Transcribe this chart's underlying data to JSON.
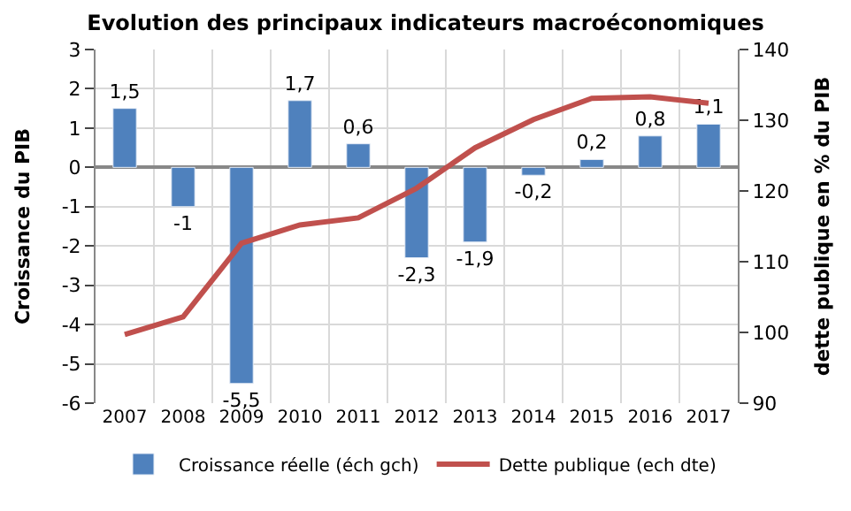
{
  "chart_data": {
    "type": "bar",
    "title": "Evolution des principaux indicateurs macroéconomiques",
    "categories": [
      "2007",
      "2008",
      "2009",
      "2010",
      "2011",
      "2012",
      "2013",
      "2014",
      "2015",
      "2016",
      "2017"
    ],
    "series": [
      {
        "name": "Croissance réelle (éch gch)",
        "color": "#4f81bd",
        "values": [
          1.5,
          -1,
          -5.5,
          1.7,
          0.6,
          -2.3,
          -1.9,
          -0.2,
          0.2,
          0.8,
          1.1
        ],
        "value_labels": [
          "1,5",
          "-1",
          "-5,5",
          "1,7",
          "0,6",
          "-2,3",
          "-1,9",
          "-0,2",
          "0,2",
          "0,8",
          "1,1"
        ]
      },
      {
        "name": "Dette publique (ech dte)",
        "type": "line",
        "axis": "y2",
        "color": "#c0504d",
        "values": [
          99.7,
          102.2,
          112.6,
          115.2,
          116.2,
          120.4,
          126.1,
          130.1,
          133.1,
          133.3,
          132.4
        ]
      }
    ],
    "ylabel": "Croissance du PIB",
    "y2label": "dette publique en % du PIB",
    "ylim": [
      -6,
      3
    ],
    "yticks": [
      -6,
      -5,
      -4,
      -3,
      -2,
      -1,
      0,
      1,
      2,
      3
    ],
    "y2lim": [
      90,
      140
    ],
    "y2ticks": [
      90,
      100,
      110,
      120,
      130,
      140
    ],
    "grid": true,
    "legend": "bottom",
    "marker": "none",
    "line_style": "solid"
  }
}
